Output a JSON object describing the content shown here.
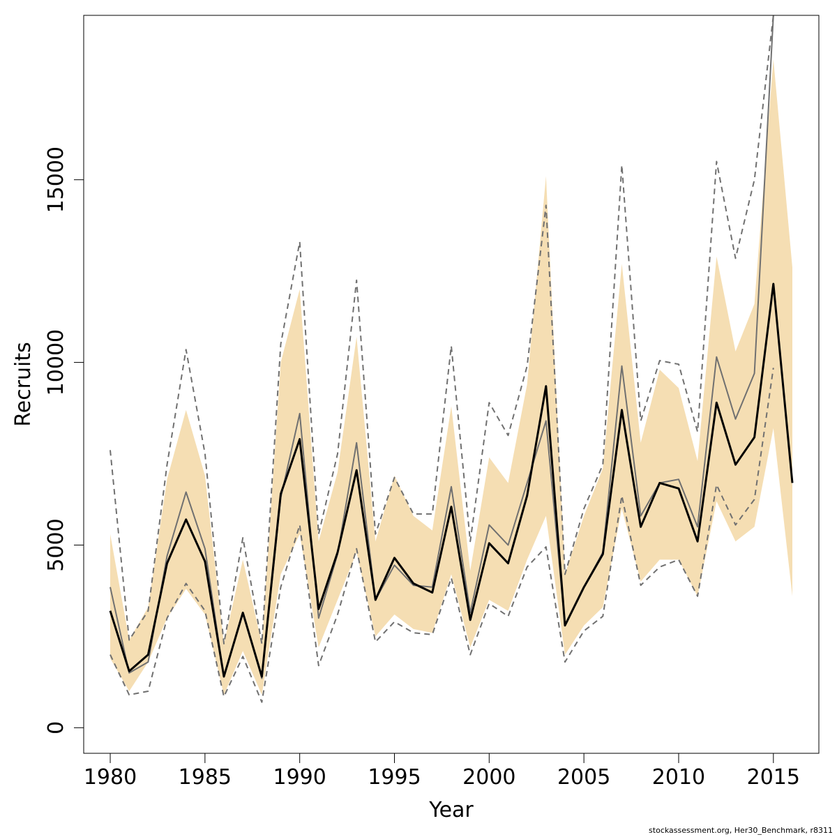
{
  "chart_data": {
    "type": "line",
    "xlabel": "Year",
    "ylabel": "Recruits",
    "xlim": [
      1978.6,
      2017.4
    ],
    "ylim": [
      -700,
      19500
    ],
    "x_ticks": [
      1980,
      1985,
      1990,
      1995,
      2000,
      2005,
      2010,
      2015
    ],
    "y_ticks": [
      0,
      5000,
      10000,
      15000
    ],
    "grid": false,
    "band_color": "#f5deb3",
    "x": [
      1980,
      1981,
      1982,
      1983,
      1984,
      1985,
      1986,
      1987,
      1988,
      1989,
      1990,
      1991,
      1992,
      1993,
      1994,
      1995,
      1996,
      1997,
      1998,
      1999,
      2000,
      2001,
      2002,
      2003,
      2004,
      2005,
      2006,
      2007,
      2008,
      2009,
      2010,
      2011,
      2012,
      2013,
      2014,
      2015,
      2016
    ],
    "band": {
      "upper": [
        5300,
        2400,
        3300,
        6800,
        8700,
        6900,
        2300,
        4600,
        2300,
        10000,
        12000,
        5100,
        7000,
        10700,
        5100,
        6900,
        5800,
        5400,
        8800,
        4300,
        7400,
        6700,
        9400,
        15100,
        4200,
        5800,
        7100,
        12700,
        7800,
        9800,
        9300,
        7300,
        12900,
        10300,
        11600,
        18300,
        12600
      ],
      "lower": [
        1900,
        1000,
        1800,
        3000,
        3800,
        3100,
        900,
        2100,
        900,
        4200,
        5300,
        2200,
        3500,
        4800,
        2500,
        3100,
        2700,
        2600,
        4200,
        2200,
        3500,
        3200,
        4600,
        5800,
        2000,
        2800,
        3300,
        6000,
        4000,
        4600,
        4600,
        3600,
        6200,
        5100,
        5500,
        8200,
        3600
      ]
    },
    "series": [
      {
        "color": "#000000",
        "values": [
          3200,
          1550,
          2000,
          4500,
          5700,
          4550,
          1400,
          3150,
          1400,
          6400,
          7900,
          3250,
          4800,
          7050,
          3500,
          4650,
          3950,
          3700,
          6050,
          2950,
          5050,
          4500,
          6350,
          9350,
          2800,
          3850,
          4750,
          8700,
          5500,
          6700,
          6550,
          5100,
          8900,
          7200,
          7950,
          12150,
          6700
        ]
      },
      {
        "color": "#707070",
        "values": [
          3850,
          1500,
          1800,
          4700,
          6450,
          4900,
          1400,
          3150,
          1350,
          6300,
          8600,
          3000,
          4750,
          7800,
          3500,
          4450,
          3900,
          3850,
          6600,
          3150,
          5550,
          5000,
          6700,
          8400,
          2800,
          3850,
          4800,
          9900,
          5800,
          6700,
          6800,
          5500,
          10150,
          8450,
          9700,
          19500,
          null
        ]
      },
      {
        "color": "#707070",
        "dash": true,
        "values": [
          7600,
          2400,
          3200,
          7200,
          10350,
          7500,
          2300,
          5200,
          2300,
          10500,
          13300,
          5300,
          7500,
          12250,
          5300,
          6850,
          5850,
          5850,
          10450,
          5100,
          8900,
          8000,
          9900,
          14300,
          4200,
          6000,
          7200,
          15400,
          8400,
          10050,
          9950,
          8100,
          15500,
          12850,
          15000,
          19500,
          null
        ]
      },
      {
        "color": "#707070",
        "dash": true,
        "values": [
          2000,
          900,
          1000,
          3000,
          3950,
          3200,
          850,
          1950,
          700,
          3850,
          5550,
          1700,
          3100,
          4900,
          2350,
          2900,
          2600,
          2550,
          4100,
          2000,
          3400,
          3050,
          4400,
          4950,
          1800,
          2650,
          3050,
          6350,
          3900,
          4400,
          4600,
          3600,
          6650,
          5550,
          6250,
          9850,
          null
        ]
      }
    ],
    "footer": "stockassessment.org, Her30_Benchmark, r8311"
  }
}
